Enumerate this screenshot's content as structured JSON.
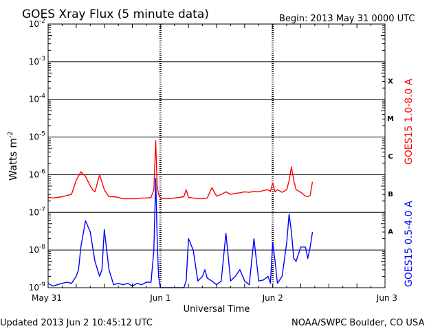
{
  "title": "GOES Xray Flux (5 minute data)",
  "begin_label": "Begin:  2013 May 31 0000 UTC",
  "updated_label": "Updated 2013 Jun  2 10:45:12 UTC",
  "credit_label": "NOAA/SWPC Boulder, CO USA",
  "colors": {
    "long": "#ff0000",
    "short": "#0000ff",
    "axis": "#000000"
  },
  "chart_data": {
    "type": "line",
    "title": "GOES Xray Flux (5 minute data)",
    "xlabel": "Universal Time",
    "ylabel": "Watts m",
    "ylabel_sup": "-2",
    "yscale": "log",
    "ylim": [
      1e-09,
      0.01
    ],
    "xlim": [
      0,
      72
    ],
    "x_unit": "hours since 2013 May 31 0000 UTC",
    "x_ticks": [
      {
        "x": 0,
        "label": "May 31"
      },
      {
        "x": 24,
        "label": "Jun 1"
      },
      {
        "x": 48,
        "label": "Jun 2"
      },
      {
        "x": 72,
        "label": "Jun 3"
      }
    ],
    "y_ticks": [
      {
        "exp": -9,
        "label": "10",
        "sup": "-9"
      },
      {
        "exp": -8,
        "label": "10",
        "sup": "-8"
      },
      {
        "exp": -7,
        "label": "10",
        "sup": "-7"
      },
      {
        "exp": -6,
        "label": "10",
        "sup": "-6"
      },
      {
        "exp": -5,
        "label": "10",
        "sup": "-5"
      },
      {
        "exp": -4,
        "label": "10",
        "sup": "-4"
      },
      {
        "exp": -3,
        "label": "10",
        "sup": "-3"
      },
      {
        "exp": -2,
        "label": "10",
        "sup": "-2"
      }
    ],
    "flare_classes": [
      {
        "label": "X",
        "exp": -3.5
      },
      {
        "label": "M",
        "exp": -4.5
      },
      {
        "label": "C",
        "exp": -5.5
      },
      {
        "label": "B",
        "exp": -6.5
      },
      {
        "label": "A",
        "exp": -7.5
      }
    ],
    "grid": "horizontal lines at each decade; dashed day markers",
    "series": [
      {
        "name": "GOES15 1.0-8.0 A",
        "color": "#ff0000",
        "x": [
          0,
          1,
          2,
          3,
          4,
          5,
          6,
          7,
          8,
          9,
          9.5,
          10,
          11,
          12,
          13,
          14,
          15,
          15.5,
          16,
          17,
          18,
          19,
          20,
          21,
          22,
          22.6,
          23,
          23.3,
          23.6,
          24,
          25,
          26,
          27,
          28,
          29,
          29.5,
          30,
          31,
          32,
          33,
          34,
          35,
          36,
          37,
          38,
          39,
          40,
          41,
          42,
          43,
          44,
          45,
          46,
          47,
          47.5,
          48,
          48.5,
          49,
          50,
          51,
          51.5,
          52,
          52.5,
          53,
          54,
          55,
          55.5,
          56,
          56.5
        ],
        "values": [
          2.5e-07,
          2.4e-07,
          2.5e-07,
          2.6e-07,
          2.8e-07,
          3e-07,
          7e-07,
          1.2e-06,
          9e-07,
          5e-07,
          4e-07,
          3.5e-07,
          1e-06,
          4e-07,
          2.6e-07,
          2.6e-07,
          2.5e-07,
          2.4e-07,
          2.3e-07,
          2.3e-07,
          2.3e-07,
          2.3e-07,
          2.4e-07,
          2.4e-07,
          2.5e-07,
          4e-07,
          8e-06,
          5e-07,
          3e-07,
          2.4e-07,
          2.3e-07,
          2.3e-07,
          2.4e-07,
          2.5e-07,
          2.6e-07,
          4e-07,
          2.5e-07,
          2.4e-07,
          2.3e-07,
          2.3e-07,
          2.4e-07,
          4.5e-07,
          2.7e-07,
          3e-07,
          3.5e-07,
          3e-07,
          3.2e-07,
          3.3e-07,
          3.5e-07,
          3.4e-07,
          3.6e-07,
          3.5e-07,
          3.8e-07,
          4e-07,
          3.6e-07,
          6e-07,
          3.5e-07,
          4e-07,
          3.4e-07,
          4e-07,
          7e-07,
          1.6e-06,
          7e-07,
          4e-07,
          3.4e-07,
          2.7e-07,
          2.6e-07,
          2.8e-07,
          6.5e-07
        ]
      },
      {
        "name": "GOES15 0.5-4.0 A",
        "color": "#0000ff",
        "x": [
          0,
          1,
          2,
          3,
          4,
          5,
          6,
          6.5,
          7,
          8,
          9,
          10,
          11,
          11.5,
          12,
          13,
          14,
          15,
          16,
          17,
          18,
          19,
          20,
          21,
          22,
          22.6,
          23,
          23.3,
          23.6,
          24,
          25,
          26,
          27,
          28,
          29,
          29.5,
          30,
          31,
          32,
          33,
          33.5,
          34,
          35,
          36,
          37,
          38,
          39,
          40,
          41,
          42,
          43,
          44,
          45,
          46,
          47,
          47.5,
          48,
          48.5,
          49,
          50,
          51,
          51.5,
          52,
          52.5,
          53,
          54,
          55,
          55.5,
          56,
          56.5
        ],
        "values": [
          1.3e-09,
          1.1e-09,
          1.2e-09,
          1.3e-09,
          1.4e-09,
          1.3e-09,
          2e-09,
          3e-09,
          1.2e-08,
          6e-08,
          3e-08,
          5e-09,
          2e-09,
          3e-09,
          3.5e-08,
          3e-09,
          1.2e-09,
          1.3e-09,
          1.2e-09,
          1.3e-09,
          1.1e-09,
          1.3e-09,
          1.2e-09,
          1.4e-09,
          1.4e-09,
          1e-08,
          8e-07,
          2e-08,
          2e-09,
          1e-09,
          1e-09,
          1e-09,
          1e-09,
          1e-09,
          1e-09,
          1.5e-09,
          2e-08,
          1e-08,
          1.5e-09,
          2e-09,
          3e-09,
          1.8e-09,
          1.5e-09,
          1.2e-09,
          1.5e-09,
          2.8e-08,
          1.5e-09,
          2e-09,
          3e-09,
          1.5e-09,
          1.2e-09,
          2e-08,
          1.5e-09,
          1.6e-09,
          2e-09,
          1.3e-09,
          1.6e-08,
          5e-09,
          1.3e-09,
          2e-09,
          1.6e-08,
          9e-08,
          3e-08,
          6e-09,
          5e-09,
          1.2e-08,
          1.2e-08,
          6e-09,
          1.2e-08,
          3e-08
        ]
      }
    ]
  }
}
